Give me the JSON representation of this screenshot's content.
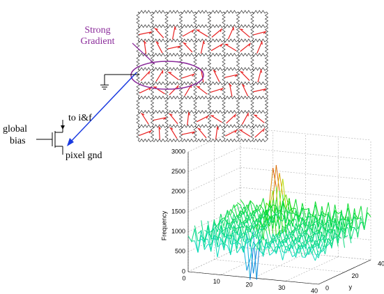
{
  "labels": {
    "strong_gradient": [
      "Strong",
      "Gradient"
    ],
    "to_if": "to i&f",
    "global_bias": [
      "global",
      "bias"
    ],
    "pixel_gnd": "pixel gnd"
  },
  "plot": {
    "zlabel": "Frequency",
    "ylabel": "y",
    "xlim": [
      0,
      40
    ],
    "ylim": [
      0,
      40
    ],
    "zlim": [
      0,
      3000
    ],
    "xticks": [
      0,
      10,
      20,
      30,
      40
    ],
    "yticks": [
      0,
      20,
      40
    ],
    "zticks": [
      0,
      500,
      1000,
      1500,
      2000,
      2500,
      3000
    ]
  }
}
